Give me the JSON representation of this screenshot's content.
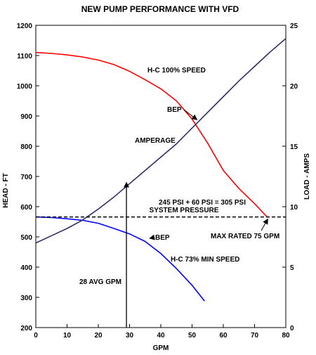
{
  "chart_data": {
    "type": "line",
    "title": "NEW PUMP PERFORMANCE WITH VFD",
    "xlabel": "GPM",
    "ylabel_left": "HEAD - FT",
    "ylabel_right": "LOAD - AMPS",
    "xlim": [
      0,
      80
    ],
    "ylim_left": [
      200,
      1200
    ],
    "ylim_right": [
      0,
      25
    ],
    "x_ticks": [
      0,
      10,
      20,
      30,
      40,
      50,
      60,
      70,
      80
    ],
    "y_left_ticks": [
      200,
      300,
      400,
      500,
      600,
      700,
      800,
      900,
      1000,
      1100,
      1200
    ],
    "y_right_ticks": [
      0,
      5,
      10,
      15,
      20,
      25
    ],
    "grid": false,
    "series": [
      {
        "name": "H-C 100% SPEED",
        "color": "#ff0000",
        "axis": "left",
        "points": [
          [
            0,
            1110
          ],
          [
            5,
            1107
          ],
          [
            10,
            1102
          ],
          [
            15,
            1095
          ],
          [
            20,
            1085
          ],
          [
            25,
            1070
          ],
          [
            30,
            1048
          ],
          [
            35,
            1020
          ],
          [
            40,
            990
          ],
          [
            45,
            950
          ],
          [
            50,
            890
          ],
          [
            55,
            810
          ],
          [
            60,
            720
          ],
          [
            65,
            660
          ],
          [
            70,
            610
          ],
          [
            74,
            566
          ]
        ]
      },
      {
        "name": "H-C 73% MIN SPEED",
        "color": "#0000ff",
        "axis": "left",
        "points": [
          [
            0,
            566
          ],
          [
            5,
            564
          ],
          [
            10,
            560
          ],
          [
            15,
            555
          ],
          [
            20,
            545
          ],
          [
            25,
            528
          ],
          [
            30,
            510
          ],
          [
            35,
            485
          ],
          [
            40,
            445
          ],
          [
            45,
            395
          ],
          [
            50,
            340
          ],
          [
            54,
            288
          ]
        ]
      },
      {
        "name": "AMPERAGE",
        "color": "#2e2e6e",
        "axis": "right",
        "points": [
          [
            0,
            7
          ],
          [
            5,
            7.6
          ],
          [
            10,
            8.2
          ],
          [
            15,
            8.9
          ],
          [
            20,
            9.8
          ],
          [
            25,
            10.8
          ],
          [
            30,
            11.9
          ],
          [
            35,
            13.0
          ],
          [
            40,
            14.1
          ],
          [
            45,
            15.2
          ],
          [
            50,
            16.5
          ],
          [
            55,
            17.8
          ],
          [
            60,
            19.1
          ],
          [
            65,
            20.4
          ],
          [
            70,
            21.6
          ],
          [
            75,
            22.8
          ],
          [
            80,
            23.9
          ]
        ]
      }
    ],
    "reference_line": {
      "axis": "left",
      "y": 566,
      "style": "dashed",
      "label_line1": "245 PSI + 60 PSI = 305 PSI",
      "label_line2": "SYSTEM PRESSURE"
    },
    "avg_arrow": {
      "x": 29,
      "y_from": 200,
      "y_to": 680,
      "label": "28 AVG GPM"
    },
    "annotations": {
      "bep_top": {
        "text": "BEP",
        "x": 52,
        "y": 890
      },
      "bep_bottom": {
        "text": "BEP",
        "x": 36,
        "y": 500
      },
      "max_rated": {
        "text": "MAX RATED 75 GPM",
        "x": 74,
        "y": 566
      },
      "h100": {
        "text": "H-C 100% SPEED"
      },
      "h73": {
        "text": "H-C 73% MIN SPEED"
      },
      "amperage": {
        "text": "AMPERAGE"
      }
    }
  }
}
